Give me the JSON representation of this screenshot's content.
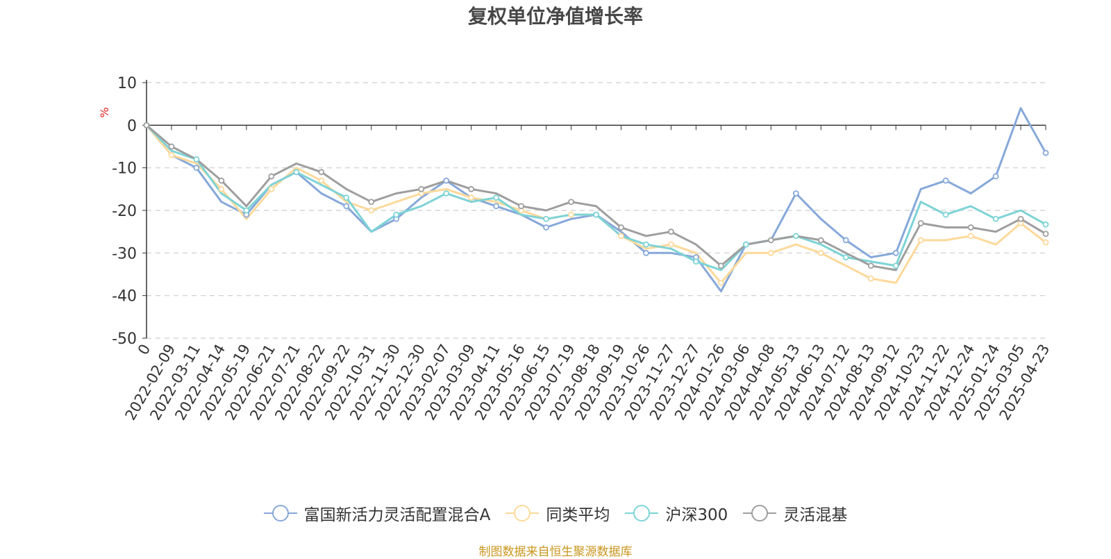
{
  "chart_data": {
    "type": "line",
    "title": "复权单位净值增长率",
    "ylabel": "%",
    "ylim": [
      -50,
      10
    ],
    "yticks": [
      10,
      0,
      -10,
      -20,
      -30,
      -40,
      -50
    ],
    "grid": true,
    "legend_position": "bottom",
    "x_tick_labels": [
      "0",
      "2022-02-09",
      "2022-03-11",
      "2022-04-14",
      "2022-05-19",
      "2022-06-21",
      "2022-07-21",
      "2022-08-22",
      "2022-09-22",
      "2022-10-31",
      "2022-11-30",
      "2022-12-30",
      "2023-02-07",
      "2023-03-09",
      "2023-04-11",
      "2023-05-16",
      "2023-06-15",
      "2023-07-19",
      "2023-08-18",
      "2023-09-19",
      "2023-10-26",
      "2023-11-27",
      "2023-12-27",
      "2024-01-26",
      "2024-03-06",
      "2024-04-08",
      "2024-05-13",
      "2024-06-13",
      "2024-07-12",
      "2024-08-13",
      "2024-09-12",
      "2024-10-23",
      "2024-11-22",
      "2024-12-24",
      "2025-01-24",
      "2025-03-05",
      "2025-04-23"
    ],
    "x": [
      "0",
      "2022-02-09",
      "2022-03-11",
      "2022-04-14",
      "2022-05-19",
      "2022-06-21",
      "2022-07-21",
      "2022-08-22",
      "2022-09-22",
      "2022-10-31",
      "2022-11-30",
      "2022-12-30",
      "2023-02-07",
      "2023-03-09",
      "2023-04-11",
      "2023-05-16",
      "2023-06-15",
      "2023-07-19",
      "2023-08-18",
      "2023-09-19",
      "2023-10-26",
      "2023-11-27",
      "2023-12-27",
      "2024-01-26",
      "2024-03-06",
      "2024-04-08",
      "2024-05-13",
      "2024-06-13",
      "2024-07-12",
      "2024-08-13",
      "2024-09-12",
      "2024-10-23",
      "2024-11-22",
      "2024-12-24",
      "2025-01-24",
      "2025-03-05",
      "2025-04-23"
    ],
    "series": [
      {
        "name": "富国新活力灵活配置混合A",
        "color": "#86a8d9",
        "values": [
          0,
          -7,
          -10,
          -18,
          -21,
          -14,
          -11,
          -16,
          -19,
          -25,
          -22,
          -17,
          -13,
          -17,
          -19,
          -21,
          -24,
          -22,
          -21,
          -25,
          -30,
          -30,
          -31,
          -39,
          -28,
          -27,
          -16,
          -22,
          -27,
          -31,
          -30,
          -15,
          -13,
          -16,
          -12,
          4,
          -6.5
        ]
      },
      {
        "name": "同类平均",
        "color": "#fdd99a",
        "values": [
          0,
          -7,
          -9,
          -15,
          -22,
          -15,
          -10,
          -13,
          -18,
          -20,
          -18,
          -16,
          -15,
          -17,
          -18,
          -20,
          -22,
          -21,
          -21,
          -26,
          -29,
          -28,
          -30,
          -37,
          -30,
          -30,
          -28,
          -30,
          -33,
          -36,
          -37,
          -27,
          -27,
          -26,
          -28,
          -23,
          -27.5
        ]
      },
      {
        "name": "沪深300",
        "color": "#7dd3d6",
        "values": [
          0,
          -6,
          -8,
          -16,
          -20,
          -14,
          -11,
          -14,
          -17,
          -25,
          -21,
          -19,
          -16,
          -18,
          -17,
          -21,
          -22,
          -21,
          -21,
          -26,
          -28,
          -29,
          -32,
          -34,
          -28,
          -27,
          -26,
          -28,
          -31,
          -32,
          -33,
          -18,
          -21,
          -19,
          -22,
          -20,
          -23.3
        ]
      },
      {
        "name": "灵活混基",
        "color": "#9e9e9e",
        "values": [
          0,
          -5,
          -8,
          -13,
          -19,
          -12,
          -9,
          -11,
          -15,
          -18,
          -16,
          -15,
          -13,
          -15,
          -16,
          -19,
          -20,
          -18,
          -19,
          -24,
          -26,
          -25,
          -28,
          -33,
          -28,
          -27,
          -26,
          -27,
          -30,
          -33,
          -34,
          -23,
          -24,
          -24,
          -25,
          -22,
          -25.5
        ]
      }
    ]
  },
  "legend": [
    {
      "label": "富国新活力灵活配置混合A",
      "color": "#86a8d9"
    },
    {
      "label": "同类平均",
      "color": "#fdd99a"
    },
    {
      "label": "沪深300",
      "color": "#7dd3d6"
    },
    {
      "label": "灵活混基",
      "color": "#9e9e9e"
    }
  ],
  "source_note": "制图数据来自恒生聚源数据库",
  "colors": {
    "title": "#464646",
    "ylabel": "#e02020",
    "grid": "#cccccc",
    "source": "#c8961e"
  }
}
